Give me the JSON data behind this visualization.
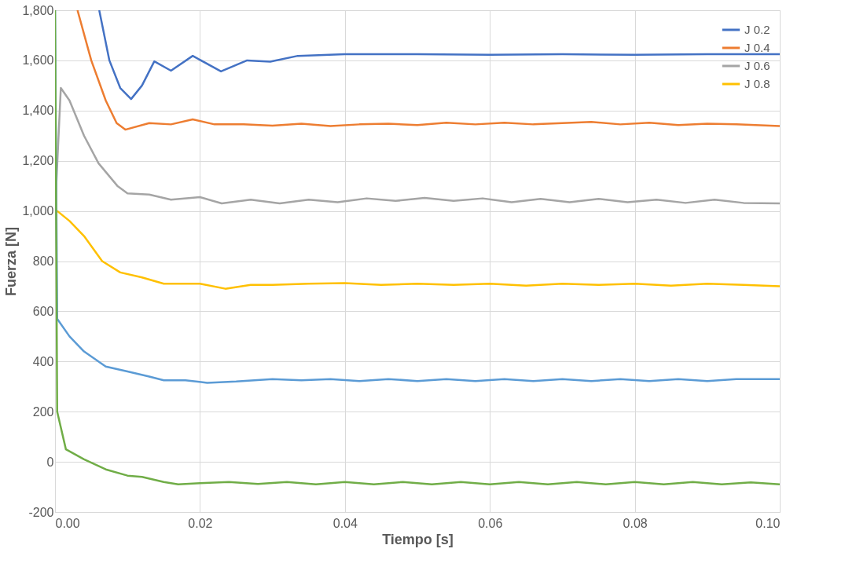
{
  "chart_data": {
    "type": "line",
    "xlabel": "Tiempo [s]",
    "ylabel": "Fuerza [N]",
    "xlim": [
      0,
      0.1
    ],
    "ylim": [
      -200,
      1800
    ],
    "xticks": [
      {
        "value": 0,
        "label": "0.00"
      },
      0.02,
      0.04,
      0.06,
      0.08,
      {
        "value": 0.1,
        "label": "0.10"
      }
    ],
    "yticks": [
      -200,
      0,
      200,
      400,
      600,
      800,
      {
        "value": 1000,
        "label": "1,000"
      },
      {
        "value": 1200,
        "label": "1,200"
      },
      {
        "value": 1400,
        "label": "1,400"
      },
      {
        "value": 1600,
        "label": "1,600"
      },
      {
        "value": 1800,
        "label": "1,800"
      }
    ],
    "grid": true,
    "legend": "top right",
    "line_style": "solid",
    "marker": "none",
    "series": [
      {
        "name": "J 0.2",
        "color": "#4472c4",
        "x": [
          0.0061,
          0.0075,
          0.009,
          0.0105,
          0.012,
          0.0137,
          0.016,
          0.019,
          0.0229,
          0.0265,
          0.0297,
          0.0335,
          0.04,
          0.05,
          0.06,
          0.07,
          0.08,
          0.09,
          0.1
        ],
        "values": [
          1800,
          1600,
          1490,
          1446,
          1500,
          1596,
          1559,
          1618,
          1556,
          1600,
          1595,
          1618,
          1625,
          1625,
          1622,
          1625,
          1622,
          1625,
          1625
        ]
      },
      {
        "name": "J 0.4",
        "color": "#ed7d31",
        "x": [
          0.0031,
          0.005,
          0.007,
          0.0085,
          0.0097,
          0.013,
          0.016,
          0.019,
          0.022,
          0.026,
          0.03,
          0.034,
          0.038,
          0.042,
          0.046,
          0.05,
          0.054,
          0.058,
          0.062,
          0.066,
          0.07,
          0.074,
          0.078,
          0.082,
          0.086,
          0.09,
          0.094,
          0.1
        ],
        "values": [
          1800,
          1600,
          1440,
          1350,
          1324,
          1350,
          1345,
          1365,
          1345,
          1345,
          1340,
          1348,
          1338,
          1345,
          1348,
          1342,
          1352,
          1345,
          1352,
          1345,
          1350,
          1355,
          1345,
          1352,
          1342,
          1348,
          1345,
          1338
        ]
      },
      {
        "name": "J 0.6",
        "color": "#a5a5a5",
        "x": [
          0,
          0.0008,
          0.002,
          0.004,
          0.006,
          0.0086,
          0.01,
          0.013,
          0.016,
          0.02,
          0.023,
          0.027,
          0.031,
          0.035,
          0.039,
          0.043,
          0.047,
          0.051,
          0.055,
          0.059,
          0.063,
          0.067,
          0.071,
          0.075,
          0.079,
          0.083,
          0.087,
          0.091,
          0.095,
          0.1
        ],
        "values": [
          1000,
          1490,
          1440,
          1300,
          1190,
          1100,
          1070,
          1065,
          1045,
          1055,
          1030,
          1045,
          1030,
          1045,
          1035,
          1050,
          1040,
          1052,
          1040,
          1050,
          1035,
          1048,
          1035,
          1048,
          1035,
          1045,
          1032,
          1045,
          1032,
          1030
        ]
      },
      {
        "name": "J 0.8",
        "color": "#ffc000",
        "x": [
          0.0003,
          0.002,
          0.004,
          0.0065,
          0.009,
          0.012,
          0.015,
          0.02,
          0.0235,
          0.027,
          0.03,
          0.035,
          0.04,
          0.045,
          0.05,
          0.055,
          0.06,
          0.065,
          0.07,
          0.075,
          0.08,
          0.085,
          0.09,
          0.095,
          0.1
        ],
        "values": [
          1000,
          960,
          900,
          800,
          755,
          735,
          710,
          710,
          690,
          705,
          705,
          710,
          712,
          705,
          710,
          705,
          710,
          702,
          710,
          705,
          710,
          702,
          710,
          705,
          700
        ]
      },
      {
        "color": "#5b9bd5",
        "x": [
          0,
          0.0003,
          0.002,
          0.004,
          0.007,
          0.01,
          0.013,
          0.015,
          0.018,
          0.021,
          0.025,
          0.03,
          0.034,
          0.038,
          0.042,
          0.046,
          0.05,
          0.054,
          0.058,
          0.062,
          0.066,
          0.07,
          0.074,
          0.078,
          0.082,
          0.086,
          0.09,
          0.094,
          0.1
        ],
        "values": [
          1800,
          570,
          500,
          440,
          380,
          360,
          340,
          325,
          325,
          315,
          320,
          330,
          325,
          330,
          322,
          330,
          322,
          330,
          322,
          330,
          322,
          330,
          322,
          330,
          322,
          330,
          322,
          330,
          330
        ]
      },
      {
        "color": "#70ad47",
        "x": [
          0,
          0.0003,
          0.0015,
          0.004,
          0.007,
          0.01,
          0.012,
          0.015,
          0.017,
          0.02,
          0.024,
          0.028,
          0.032,
          0.036,
          0.04,
          0.044,
          0.048,
          0.052,
          0.056,
          0.06,
          0.064,
          0.068,
          0.072,
          0.076,
          0.08,
          0.084,
          0.088,
          0.092,
          0.096,
          0.1
        ],
        "values": [
          1800,
          200,
          50,
          10,
          -30,
          -55,
          -60,
          -80,
          -90,
          -85,
          -80,
          -88,
          -80,
          -90,
          -80,
          -90,
          -80,
          -90,
          -80,
          -90,
          -80,
          -90,
          -80,
          -90,
          -80,
          -90,
          -80,
          -90,
          -82,
          -90
        ]
      }
    ]
  }
}
